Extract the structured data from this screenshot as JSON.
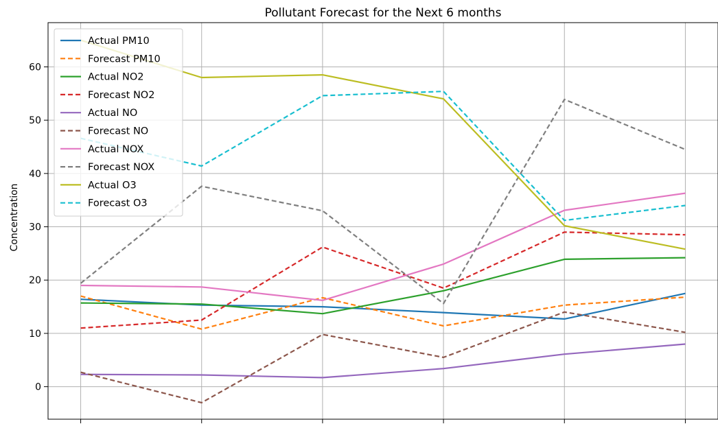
{
  "chart_data": {
    "type": "line",
    "title": "Pollutant Forecast for the Next 6 months",
    "xlabel": "",
    "ylabel": "Concentration",
    "x": [
      0,
      1,
      2,
      3,
      4,
      5
    ],
    "xlim": [
      -0.27,
      5.27
    ],
    "ylim": [
      -6.1,
      68.3
    ],
    "yticks": [
      0,
      10,
      20,
      30,
      40,
      50,
      60
    ],
    "grid": true,
    "legend_position": "upper-left",
    "series": [
      {
        "name": "Actual PM10",
        "style": "solid",
        "color": "#1f77b4",
        "values": [
          16.4,
          15.3,
          15.0,
          13.9,
          12.7,
          17.5
        ]
      },
      {
        "name": "Forecast PM10",
        "style": "dashed",
        "color": "#ff7f0e",
        "values": [
          17.0,
          10.8,
          16.7,
          11.4,
          15.3,
          16.8
        ]
      },
      {
        "name": "Actual NO2",
        "style": "solid",
        "color": "#2ca02c",
        "values": [
          15.7,
          15.5,
          13.7,
          18.0,
          23.9,
          24.2
        ]
      },
      {
        "name": "Forecast NO2",
        "style": "dashed",
        "color": "#d62728",
        "values": [
          11.0,
          12.5,
          26.2,
          18.5,
          29.0,
          28.5
        ]
      },
      {
        "name": "Actual NO",
        "style": "solid",
        "color": "#9467bd",
        "values": [
          2.3,
          2.2,
          1.7,
          3.4,
          6.1,
          8.0
        ]
      },
      {
        "name": "Forecast NO",
        "style": "dashed",
        "color": "#8c564b",
        "values": [
          2.7,
          -3.0,
          9.8,
          5.5,
          14.0,
          10.2
        ]
      },
      {
        "name": "Actual NOX",
        "style": "solid",
        "color": "#e377c2",
        "values": [
          19.0,
          18.7,
          16.2,
          23.0,
          33.1,
          36.3
        ]
      },
      {
        "name": "Forecast NOX",
        "style": "dashed",
        "color": "#7f7f7f",
        "values": [
          19.4,
          37.6,
          33.0,
          15.6,
          53.9,
          44.5
        ]
      },
      {
        "name": "Actual O3",
        "style": "solid",
        "color": "#bcbd22",
        "values": [
          65.0,
          58.0,
          58.5,
          54.0,
          30.2,
          25.8
        ]
      },
      {
        "name": "Forecast O3",
        "style": "dashed",
        "color": "#17becf",
        "values": [
          46.6,
          41.4,
          54.6,
          55.4,
          31.2,
          34.0
        ]
      }
    ]
  }
}
